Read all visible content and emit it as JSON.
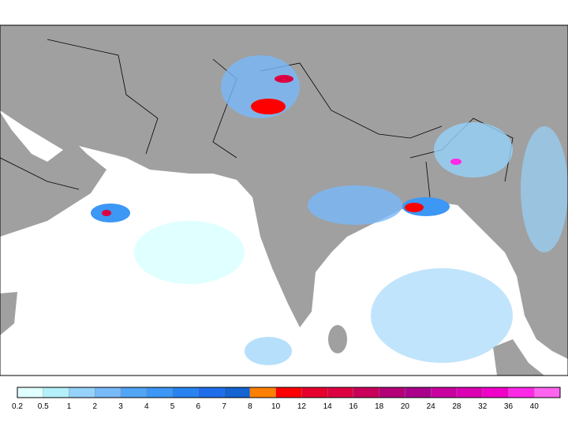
{
  "colorbar": {
    "labels": [
      0.2,
      0.5,
      1,
      2,
      3,
      4,
      5,
      6,
      7,
      8,
      10,
      12,
      14,
      16,
      18,
      20,
      24,
      28,
      32,
      36,
      40
    ],
    "colors": [
      "#e0ffff",
      "#b4f0fa",
      "#96d2fa",
      "#78b9fa",
      "#50a5f5",
      "#3c97f5",
      "#2883f0",
      "#1e6eeb",
      "#1464d2",
      "#ff7f00",
      "#ff0000",
      "#e6002d",
      "#dc0041",
      "#c8005a",
      "#b40078",
      "#aa008c",
      "#c800a0",
      "#dc00b4",
      "#f000c8",
      "#ff28e6",
      "#ff64f0"
    ]
  }
}
